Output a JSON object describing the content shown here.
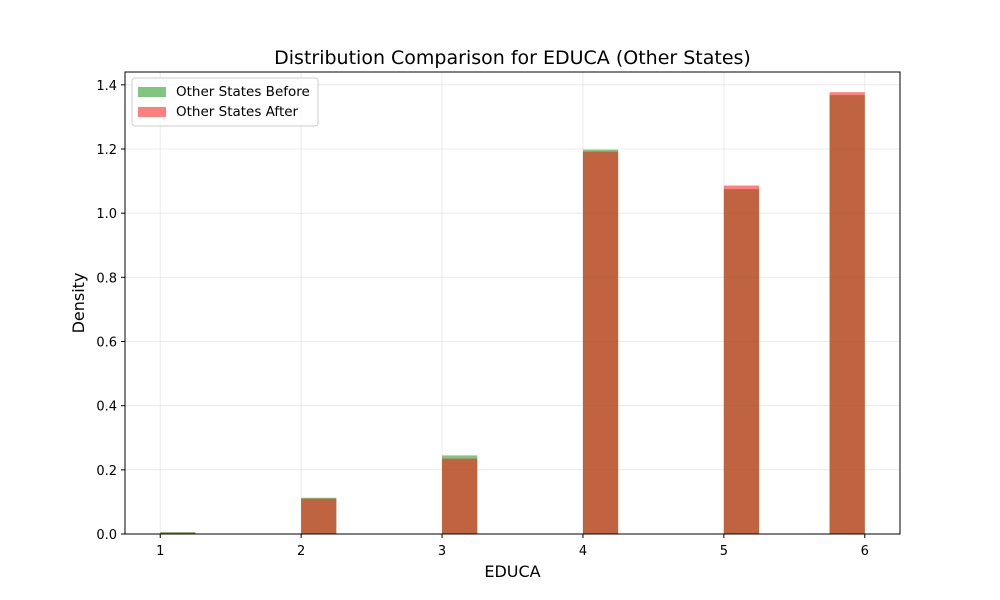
{
  "chart_data": {
    "type": "bar",
    "title": "Distribution Comparison for EDUCA (Other States)",
    "xlabel": "EDUCA",
    "ylabel": "Density",
    "xlim": [
      0.75,
      6.25
    ],
    "ylim": [
      0,
      1.44
    ],
    "x_ticks": [
      1,
      2,
      3,
      4,
      5,
      6
    ],
    "y_ticks": [
      0.0,
      0.2,
      0.4,
      0.6,
      0.8,
      1.0,
      1.2,
      1.4
    ],
    "y_tick_labels": [
      "0.0",
      "0.2",
      "0.4",
      "0.6",
      "0.8",
      "1.0",
      "1.2",
      "1.4"
    ],
    "bin_edges": [
      1.0,
      1.25,
      2.0,
      2.25,
      3.0,
      3.25,
      4.0,
      4.25,
      5.0,
      5.25,
      5.75,
      6.0
    ],
    "grid": true,
    "legend_position": "top-left",
    "series": [
      {
        "name": "Other States Before",
        "color": "#2ca02c",
        "opacity": 0.6,
        "values": [
          0.006,
          0.113,
          0.245,
          1.198,
          1.075,
          1.368
        ]
      },
      {
        "name": "Other States After",
        "color": "#ff0000",
        "opacity": 0.5,
        "values": [
          0.004,
          0.11,
          0.235,
          1.192,
          1.086,
          1.377
        ]
      }
    ]
  }
}
